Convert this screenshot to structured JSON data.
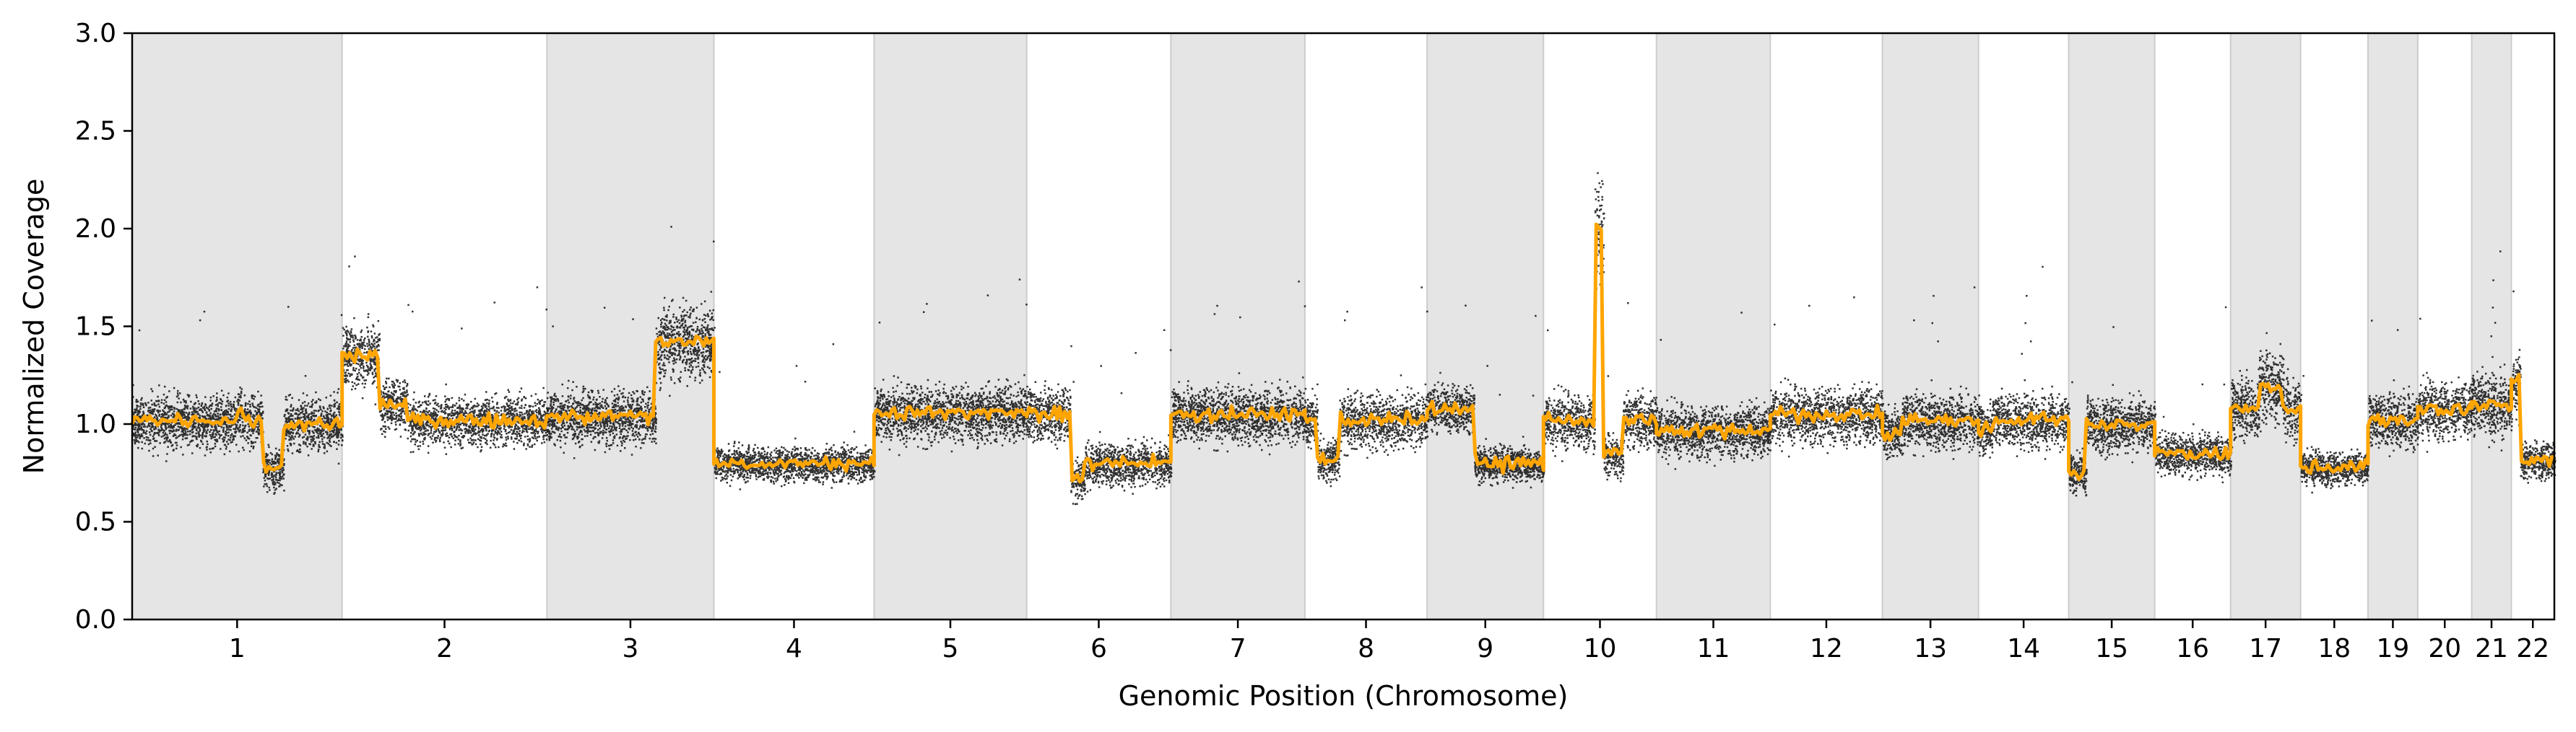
{
  "chart_data": {
    "type": "scatter",
    "title": "",
    "xlabel": "Genomic Position (Chromosome)",
    "ylabel": "Normalized Coverage",
    "ylim": [
      0,
      3
    ],
    "yticks": [
      "0.0",
      "0.5",
      "1.0",
      "1.5",
      "2.0",
      "2.5",
      "3.0"
    ],
    "grid": false,
    "legend": "none",
    "shading": "alternating chromosomes shaded gray",
    "colors": {
      "points": "#000000",
      "segments": "#FFA500",
      "band": "#e5e5e5",
      "band_edge": "#cccccc"
    },
    "chromosomes": [
      {
        "name": "1",
        "length": 249,
        "base": 1.02,
        "noise": 0.1,
        "events": [
          [
            0.5,
            0.52,
            1.06
          ],
          [
            0.62,
            0.72,
            0.78
          ],
          [
            0.72,
            1.0,
            1.0
          ]
        ]
      },
      {
        "name": "2",
        "length": 243,
        "base": 1.02,
        "noise": 0.09,
        "events": [
          [
            0.0,
            0.18,
            1.35
          ],
          [
            0.18,
            0.32,
            1.1
          ]
        ]
      },
      {
        "name": "3",
        "length": 198,
        "base": 1.04,
        "noise": 0.1,
        "events": [
          [
            0.65,
            1.0,
            1.42
          ]
        ]
      },
      {
        "name": "4",
        "length": 190,
        "base": 0.8,
        "noise": 0.08,
        "events": []
      },
      {
        "name": "5",
        "length": 181,
        "base": 1.06,
        "noise": 0.1,
        "events": []
      },
      {
        "name": "6",
        "length": 171,
        "base": 1.05,
        "noise": 0.1,
        "events": [
          [
            0.3,
            0.4,
            0.72
          ],
          [
            0.4,
            1.0,
            0.8
          ]
        ]
      },
      {
        "name": "7",
        "length": 159,
        "base": 1.05,
        "noise": 0.1,
        "events": []
      },
      {
        "name": "8",
        "length": 145,
        "base": 1.02,
        "noise": 0.1,
        "events": [
          [
            0.1,
            0.28,
            0.82
          ]
        ]
      },
      {
        "name": "9",
        "length": 138,
        "base": 0.8,
        "noise": 0.08,
        "events": [
          [
            0.0,
            0.4,
            1.08
          ]
        ]
      },
      {
        "name": "10",
        "length": 134,
        "base": 1.02,
        "noise": 0.1,
        "events": [
          [
            0.45,
            0.53,
            2.0
          ],
          [
            0.53,
            0.7,
            0.85
          ]
        ]
      },
      {
        "name": "11",
        "length": 135,
        "base": 0.97,
        "noise": 0.1,
        "events": []
      },
      {
        "name": "12",
        "length": 133,
        "base": 1.05,
        "noise": 0.1,
        "events": []
      },
      {
        "name": "13",
        "length": 114,
        "base": 1.02,
        "noise": 0.1,
        "events": [
          [
            0.0,
            0.2,
            0.95
          ]
        ]
      },
      {
        "name": "14",
        "length": 107,
        "base": 1.02,
        "noise": 0.1,
        "events": [
          [
            0.0,
            0.15,
            0.97
          ]
        ]
      },
      {
        "name": "15",
        "length": 102,
        "base": 1.0,
        "noise": 0.1,
        "events": [
          [
            0.0,
            0.2,
            0.75
          ]
        ]
      },
      {
        "name": "16",
        "length": 90,
        "base": 0.85,
        "noise": 0.09,
        "events": []
      },
      {
        "name": "17",
        "length": 83,
        "base": 1.08,
        "noise": 0.11,
        "events": [
          [
            0.4,
            0.75,
            1.2
          ]
        ]
      },
      {
        "name": "18",
        "length": 80,
        "base": 0.78,
        "noise": 0.08,
        "events": []
      },
      {
        "name": "19",
        "length": 59,
        "base": 1.02,
        "noise": 0.1,
        "events": []
      },
      {
        "name": "20",
        "length": 64,
        "base": 1.08,
        "noise": 0.1,
        "events": []
      },
      {
        "name": "21",
        "length": 47,
        "base": 1.1,
        "noise": 0.11,
        "events": []
      },
      {
        "name": "22",
        "length": 51,
        "base": 0.82,
        "noise": 0.09,
        "events": [
          [
            0.0,
            0.2,
            1.22
          ]
        ]
      }
    ]
  }
}
